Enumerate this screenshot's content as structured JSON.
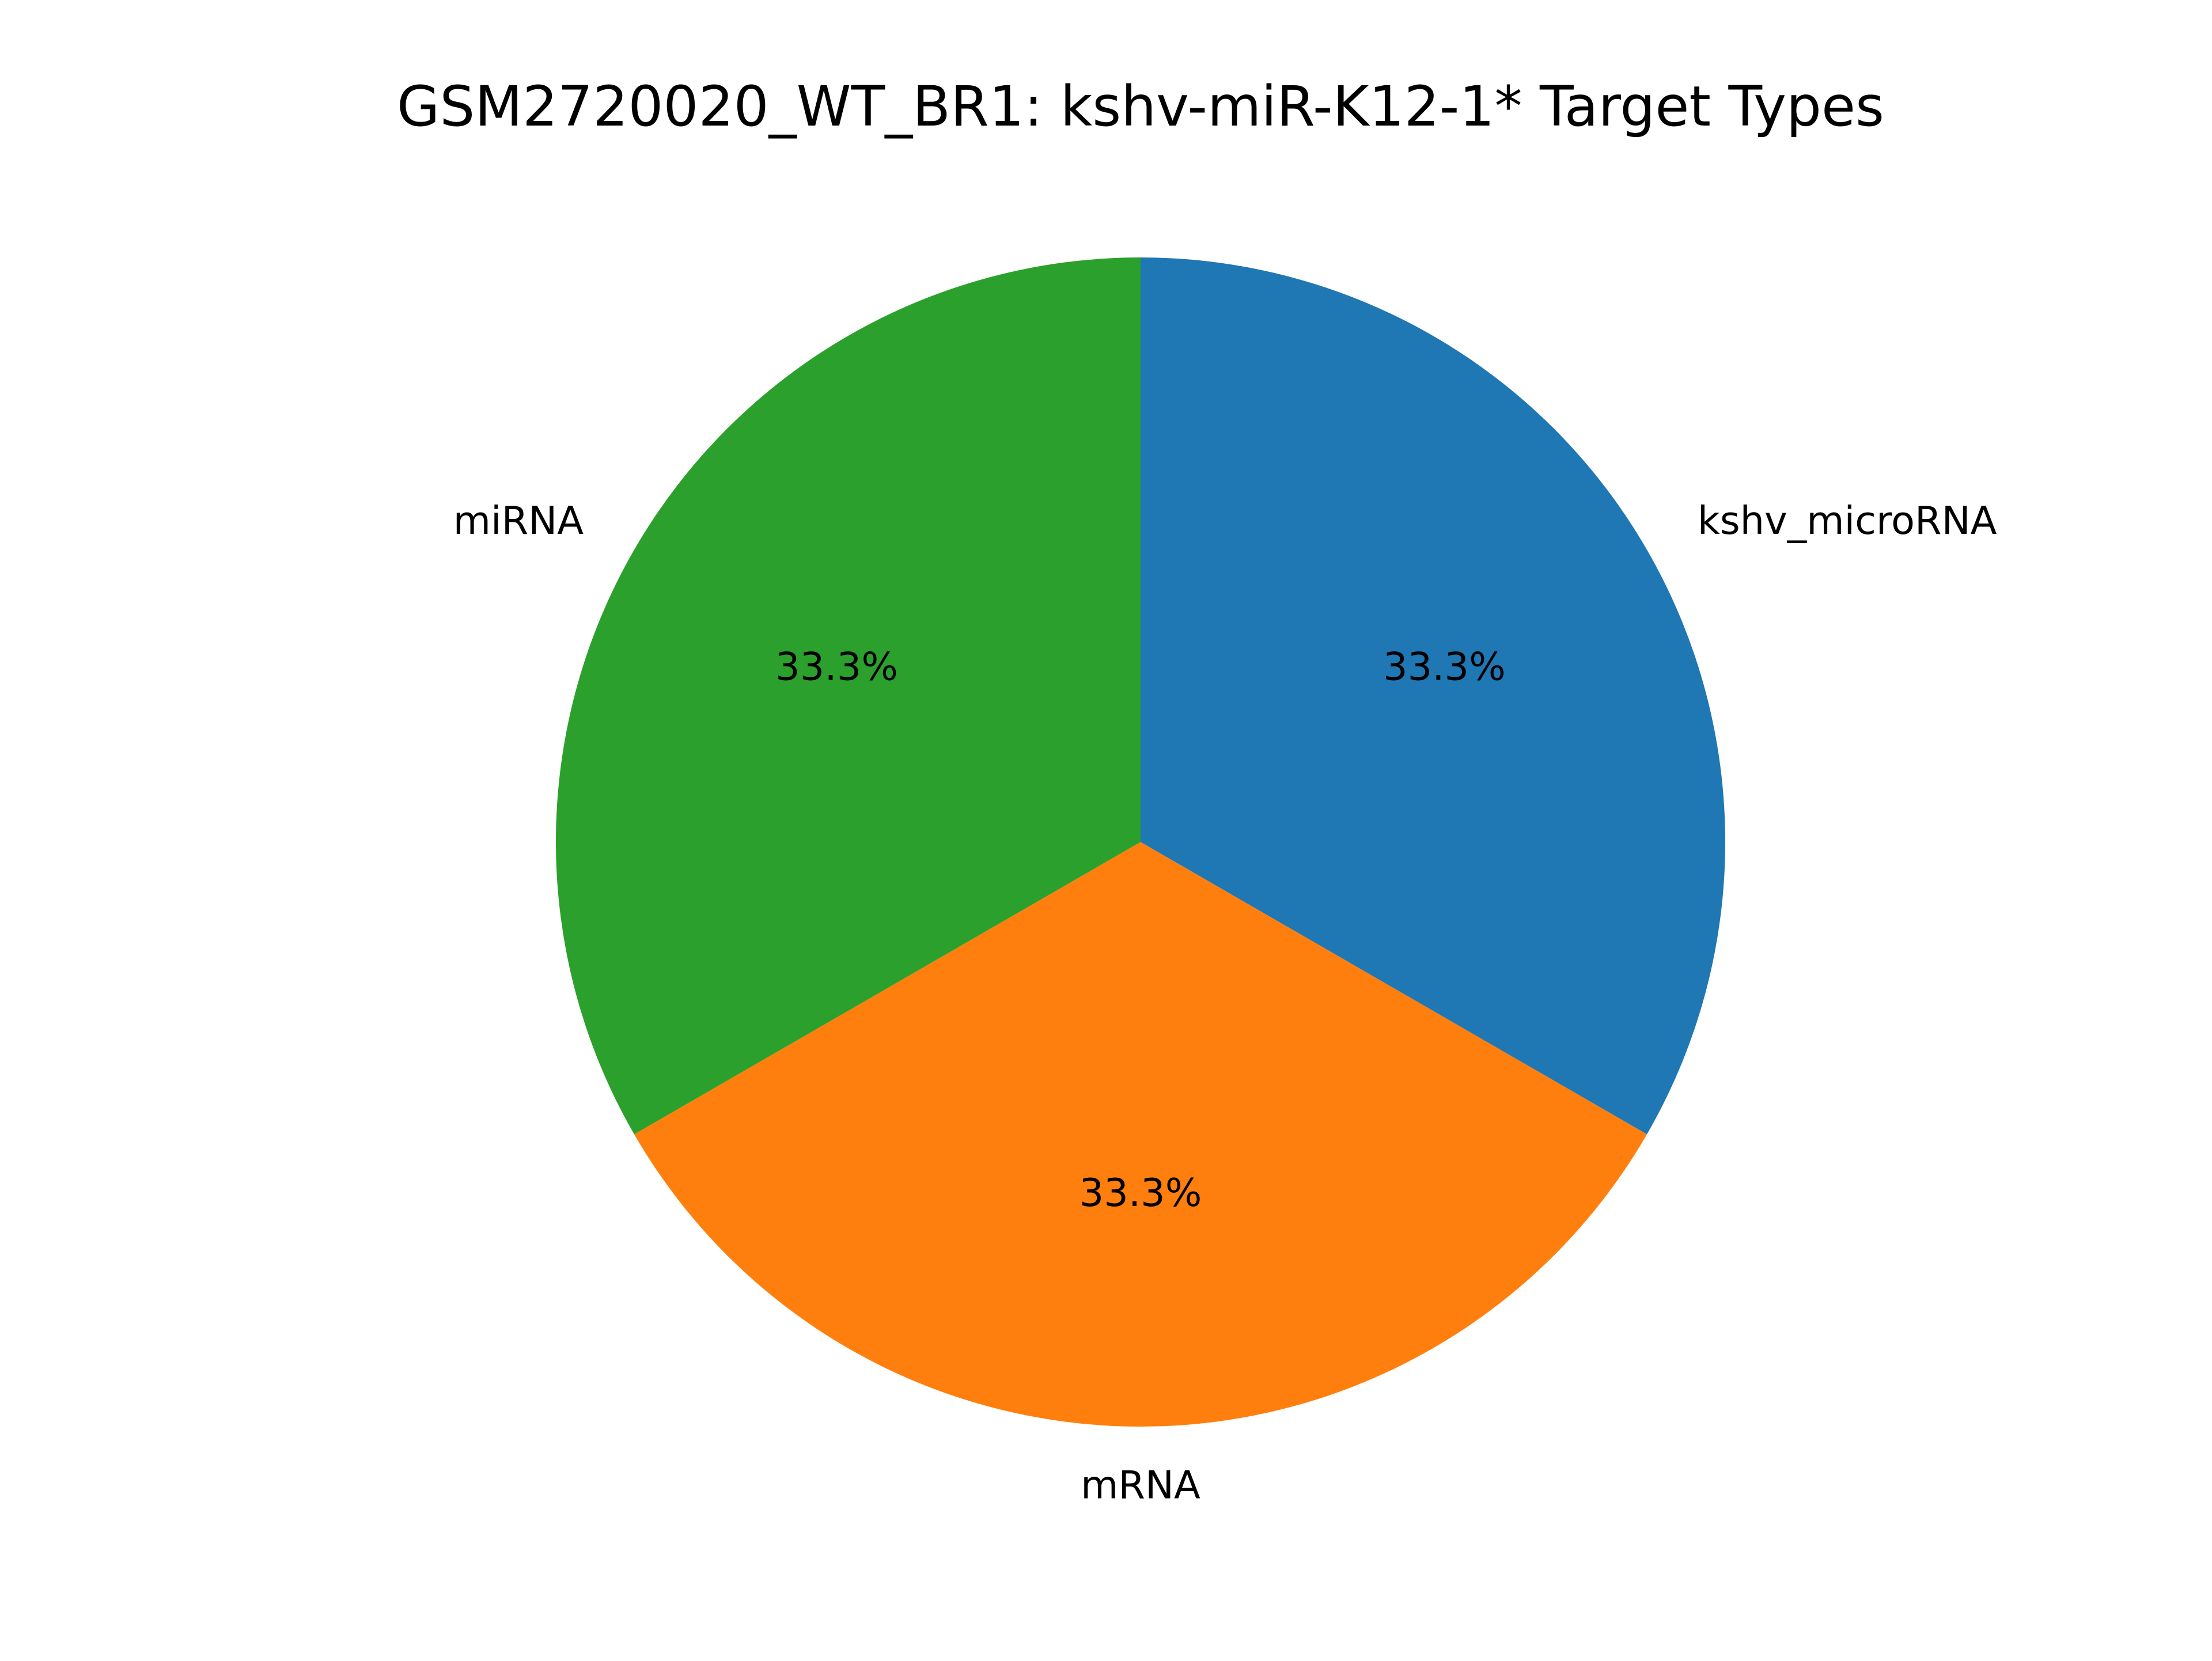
{
  "chart_data": {
    "type": "pie",
    "title": "GSM2720020_WT_BR1: kshv-miR-K12-1* Target Types",
    "slices": [
      {
        "label": "kshv_microRNA",
        "value": 33.3,
        "pct_label": "33.3%",
        "color": "#1f77b4"
      },
      {
        "label": "mRNA",
        "value": 33.3,
        "pct_label": "33.3%",
        "color": "#ff7f0e"
      },
      {
        "label": "miRNA",
        "value": 33.3,
        "pct_label": "33.3%",
        "color": "#2ca02c"
      }
    ],
    "start_angle_deg": 90,
    "direction": "clockwise",
    "legend": "none"
  }
}
